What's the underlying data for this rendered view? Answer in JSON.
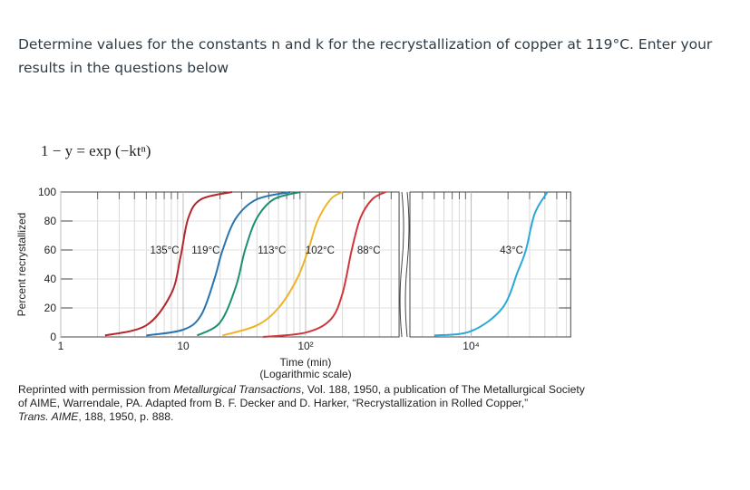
{
  "question": "Determine values for the constants n and k for the recrystallization of copper at 119°C. Enter your results in the questions below",
  "equation": "1 − y = exp (−ktⁿ)",
  "chart_data": {
    "type": "line",
    "xlog": true,
    "ylabel": "Percent recrystallized",
    "xlabel": "Time (min)",
    "xlabel2": "(Logarithmic scale)",
    "panels": [
      {
        "xlim": [
          1,
          580
        ]
      },
      {
        "xlim": [
          3160,
          65000
        ]
      }
    ],
    "ylim": [
      0,
      100
    ],
    "yticks": [
      0,
      20,
      40,
      60,
      80,
      100
    ],
    "xticks": [
      1,
      10,
      {
        "value": 100,
        "label": "10²"
      },
      {
        "value": 10000,
        "label": "10⁴"
      }
    ],
    "series": [
      {
        "name": "135°C",
        "color": "#b3262b",
        "x": [
          2.3,
          5,
          8,
          9.5,
          11,
          14,
          25
        ],
        "values": [
          1,
          8,
          30,
          55,
          82,
          95,
          100
        ]
      },
      {
        "name": "119°C",
        "color": "#2a74b0",
        "x": [
          5,
          10,
          14,
          18,
          21,
          27,
          40,
          75
        ],
        "values": [
          1,
          5,
          15,
          40,
          60,
          82,
          95,
          100
        ]
      },
      {
        "name": "113°C",
        "color": "#1b9070",
        "x": [
          13,
          20,
          27,
          32,
          40,
          55,
          90
        ],
        "values": [
          1,
          10,
          35,
          60,
          82,
          95,
          100
        ]
      },
      {
        "name": "102°C",
        "color": "#efb425",
        "x": [
          21,
          40,
          60,
          85,
          105,
          125,
          160,
          200
        ],
        "values": [
          1,
          8,
          20,
          40,
          60,
          80,
          95,
          100
        ]
      },
      {
        "name": "88°C",
        "color": "#d1363b",
        "x": [
          45,
          100,
          160,
          200,
          238,
          280,
          350,
          450
        ],
        "values": [
          0,
          3,
          12,
          30,
          60,
          82,
          95,
          100
        ]
      },
      {
        "name": "43°C",
        "color": "#2aa8d8",
        "x": [
          5000,
          10000,
          18000,
          24000,
          28000,
          33000,
          42000
        ],
        "values": [
          1,
          4,
          20,
          45,
          60,
          85,
          100
        ]
      }
    ]
  },
  "caption": {
    "line1": [
      "Reprinted with permission from ",
      "Metallurgical Transactions",
      ", Vol. 188, 1950, a publication of The Metallurgical Society"
    ],
    "line2": "of AIME, Warrendale, PA. Adapted from B. F. Decker and D. Harker, “Recrystallization in Rolled Copper,”",
    "line3": [
      "Trans. AIME",
      ", 188, 1950, p. 888."
    ]
  }
}
